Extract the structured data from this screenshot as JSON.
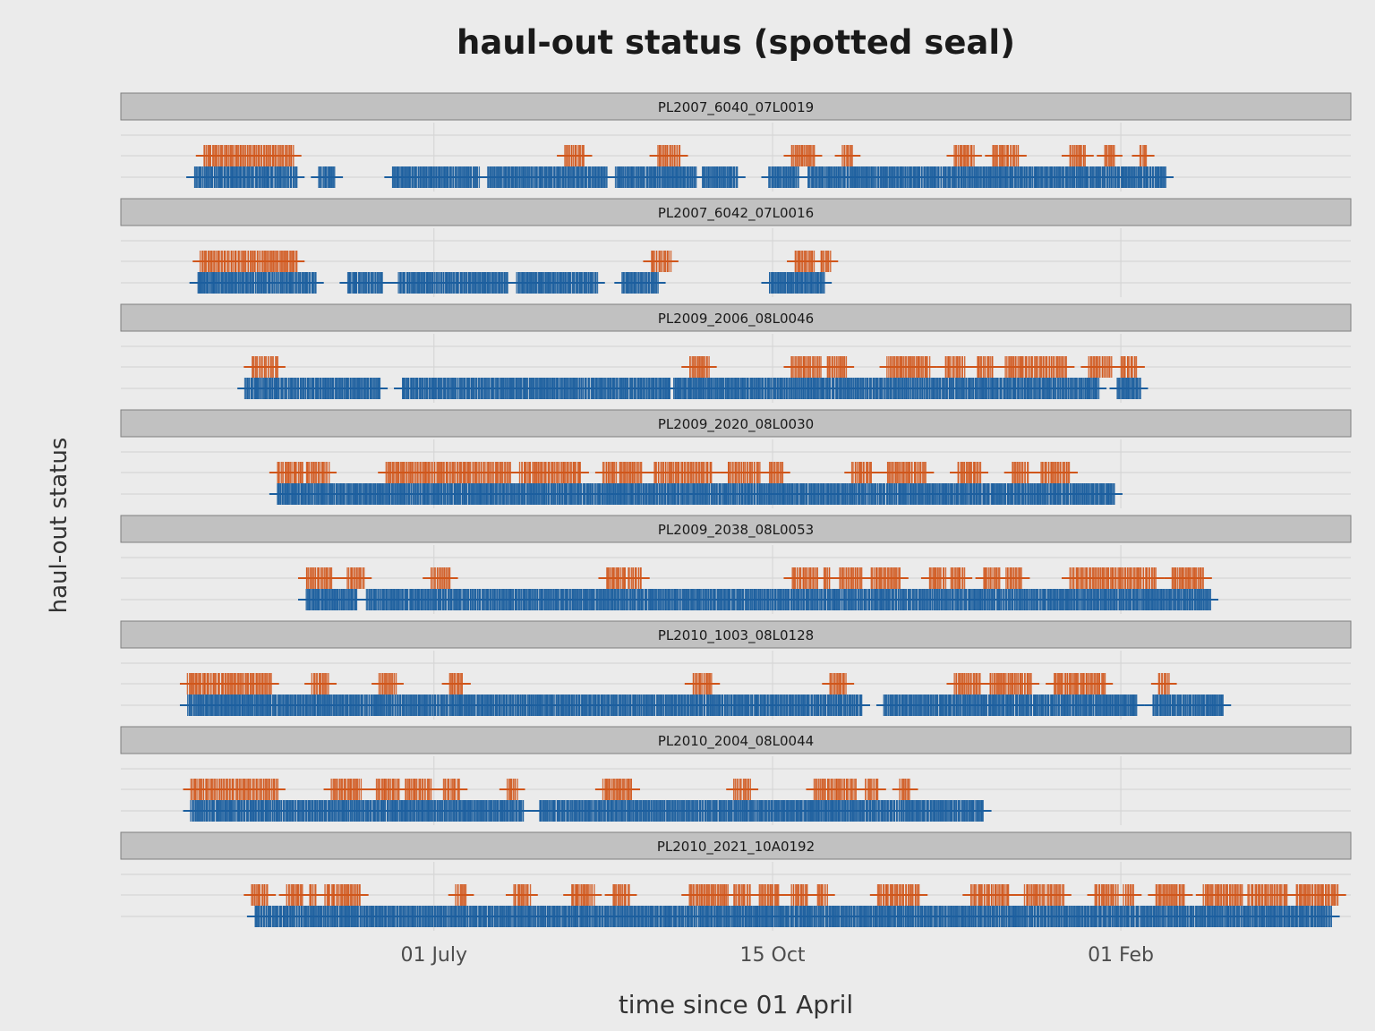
{
  "title": "haul-out status (spotted seal)",
  "colors": {
    "background": "#ebebeb",
    "strip": "#c1c1c1",
    "grid": "#d6d6d6",
    "haulout": "#d0561b",
    "water": "#1c5f9f"
  },
  "chart_data": {
    "type": "scatter",
    "marker": "plus",
    "title": "haul-out status (spotted seal)",
    "xlabel": "time since 01 April",
    "ylabel": "haul-out status",
    "x_ticks": [
      {
        "label": "01 July",
        "day": 91
      },
      {
        "label": "15 Oct",
        "day": 197
      },
      {
        "label": "01 Feb",
        "day": 306
      }
    ],
    "xlim_days": [
      -7,
      378
    ],
    "grid": true,
    "series_colors": {
      "upper": "#d0561b",
      "lower": "#1c5f9f"
    },
    "panels": [
      {
        "name": "PL2007_6040_07L0019",
        "upper": [
          [
            19,
            47
          ],
          [
            132,
            138
          ],
          [
            161,
            168
          ],
          [
            203,
            210
          ],
          [
            219,
            222
          ],
          [
            254,
            260
          ],
          [
            266,
            274
          ],
          [
            290,
            295
          ],
          [
            301,
            304
          ],
          [
            312,
            314
          ]
        ],
        "lower": [
          [
            16,
            48
          ],
          [
            55,
            60
          ],
          [
            78,
            105
          ],
          [
            108,
            145
          ],
          [
            148,
            173
          ],
          [
            175,
            186
          ],
          [
            196,
            205
          ],
          [
            208,
            320
          ]
        ]
      },
      {
        "name": "PL2007_6042_07L0016",
        "upper": [
          [
            18,
            48
          ],
          [
            159,
            165
          ],
          [
            204,
            210
          ],
          [
            212,
            215
          ]
        ],
        "lower": [
          [
            17,
            54
          ],
          [
            64,
            75
          ],
          [
            80,
            114
          ],
          [
            117,
            142
          ],
          [
            150,
            161
          ],
          [
            196,
            213
          ]
        ]
      },
      {
        "name": "PL2009_2006_08L0046",
        "upper": [
          [
            34,
            42
          ],
          [
            171,
            177
          ],
          [
            203,
            212
          ],
          [
            214,
            220
          ],
          [
            233,
            246
          ],
          [
            251,
            257
          ],
          [
            261,
            266
          ],
          [
            270,
            289
          ],
          [
            296,
            303
          ],
          [
            306,
            311
          ]
        ],
        "lower": [
          [
            32,
            74
          ],
          [
            81,
            165
          ],
          [
            166,
            299
          ],
          [
            305,
            312
          ]
        ]
      },
      {
        "name": "PL2009_2020_08L0030",
        "upper": [
          [
            42,
            50
          ],
          [
            51,
            58
          ],
          [
            76,
            115
          ],
          [
            118,
            137
          ],
          [
            144,
            148
          ],
          [
            149,
            156
          ],
          [
            160,
            178
          ],
          [
            183,
            193
          ],
          [
            196,
            200
          ],
          [
            222,
            228
          ],
          [
            233,
            245
          ],
          [
            255,
            262
          ],
          [
            272,
            277
          ],
          [
            281,
            290
          ]
        ],
        "lower": [
          [
            42,
            304
          ]
        ]
      },
      {
        "name": "PL2009_2038_08L0053",
        "upper": [
          [
            51,
            59
          ],
          [
            64,
            69
          ],
          [
            90,
            96
          ],
          [
            145,
            151
          ],
          [
            152,
            156
          ],
          [
            203,
            211
          ],
          [
            213,
            215
          ],
          [
            218,
            225
          ],
          [
            228,
            237
          ],
          [
            246,
            251
          ],
          [
            253,
            257
          ],
          [
            263,
            268
          ],
          [
            270,
            275
          ],
          [
            290,
            317
          ],
          [
            322,
            332
          ]
        ],
        "lower": [
          [
            51,
            67
          ],
          [
            70,
            334
          ]
        ]
      },
      {
        "name": "PL2010_1003_08L0128",
        "upper": [
          [
            14,
            40
          ],
          [
            53,
            58
          ],
          [
            74,
            79
          ],
          [
            96,
            100
          ],
          [
            172,
            178
          ],
          [
            215,
            220
          ],
          [
            254,
            262
          ],
          [
            265,
            278
          ],
          [
            285,
            301
          ],
          [
            318,
            321
          ]
        ],
        "lower": [
          [
            14,
            225
          ],
          [
            232,
            311
          ],
          [
            316,
            338
          ]
        ]
      },
      {
        "name": "PL2010_2004_08L0044",
        "upper": [
          [
            15,
            42
          ],
          [
            59,
            68
          ],
          [
            73,
            80
          ],
          [
            82,
            90
          ],
          [
            94,
            99
          ],
          [
            114,
            117
          ],
          [
            144,
            153
          ],
          [
            185,
            190
          ],
          [
            210,
            223
          ],
          [
            226,
            230
          ],
          [
            237,
            240
          ]
        ],
        "lower": [
          [
            15,
            119
          ],
          [
            124,
            263
          ]
        ]
      },
      {
        "name": "PL2010_2021_10A0192",
        "upper": [
          [
            34,
            39
          ],
          [
            45,
            50
          ],
          [
            52,
            54
          ],
          [
            57,
            68
          ],
          [
            98,
            101
          ],
          [
            116,
            121
          ],
          [
            134,
            141
          ],
          [
            147,
            152
          ],
          [
            171,
            183
          ],
          [
            185,
            190
          ],
          [
            193,
            199
          ],
          [
            203,
            208
          ],
          [
            211,
            214
          ],
          [
            230,
            243
          ],
          [
            259,
            271
          ],
          [
            276,
            282
          ],
          [
            283,
            288
          ],
          [
            298,
            305
          ],
          [
            307,
            310
          ],
          [
            317,
            326
          ],
          [
            332,
            344
          ],
          [
            346,
            358
          ],
          [
            361,
            374
          ]
        ],
        "lower": [
          [
            35,
            372
          ]
        ]
      }
    ]
  }
}
